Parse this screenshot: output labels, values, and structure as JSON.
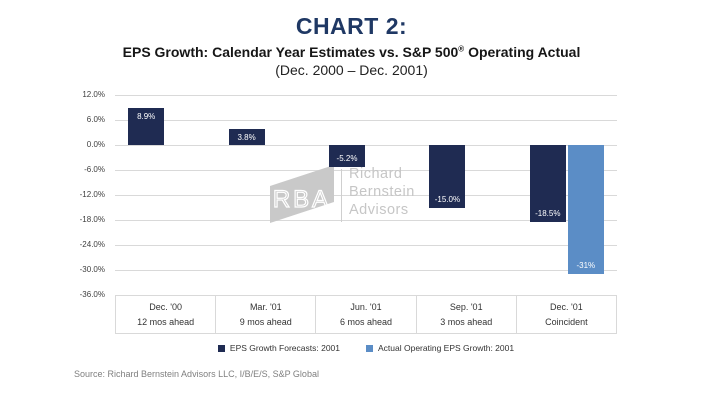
{
  "header": {
    "chart_label": "CHART 2:",
    "title_pre": "EPS Growth: Calendar Year Estimates vs. S&P 500",
    "title_reg": "®",
    "title_post": " Operating Actual",
    "period": "(Dec. 2000 – Dec. 2001)"
  },
  "chart_data": {
    "type": "bar",
    "title": "EPS Growth: Calendar Year Estimates vs. S&P 500® Operating Actual",
    "subtitle": "(Dec. 2000 – Dec. 2001)",
    "categories": [
      {
        "period": "Dec. '00",
        "horizon": "12 mos ahead"
      },
      {
        "period": "Mar. '01",
        "horizon": "9 mos ahead"
      },
      {
        "period": "Jun. '01",
        "horizon": "6 mos ahead"
      },
      {
        "period": "Sep. '01",
        "horizon": "3 mos ahead"
      },
      {
        "period": "Dec. '01",
        "horizon": "Coincident"
      }
    ],
    "series": [
      {
        "name": "EPS Growth Forecasts: 2001",
        "color": "#1F2B52",
        "values": [
          8.9,
          3.8,
          -5.2,
          -15.0,
          -18.5
        ]
      },
      {
        "name": "Actual Operating EPS Growth: 2001",
        "color": "#5B8DC6",
        "values": [
          null,
          null,
          null,
          null,
          -31
        ]
      }
    ],
    "data_labels": [
      [
        "8.9%",
        "3.8%",
        "-5.2%",
        "-15.0%",
        "-18.5%"
      ],
      [
        null,
        null,
        null,
        null,
        "-31%"
      ]
    ],
    "ytick_labels": [
      "12.0%",
      "6.0%",
      "0.0%",
      "-6.0%",
      "-12.0%",
      "-18.0%",
      "-24.0%",
      "-30.0%",
      "-36.0%"
    ],
    "ytick_values": [
      12,
      6,
      0,
      -6,
      -12,
      -18,
      -24,
      -30,
      -36
    ],
    "ylim": [
      -36,
      12
    ],
    "grid": true,
    "legend_position": "bottom",
    "accent_colors": {
      "forecast_navy": "#1F2B52",
      "actual_blue": "#5B8DC6",
      "gridline_gray": "#D9D9D9"
    }
  },
  "watermark": {
    "logo_text": "RBA",
    "lines": [
      "Richard",
      "Bernstein",
      "Advisors"
    ]
  },
  "source": {
    "text": "Source: Richard Bernstein Advisors LLC, I/B/E/S, S&P Global"
  }
}
